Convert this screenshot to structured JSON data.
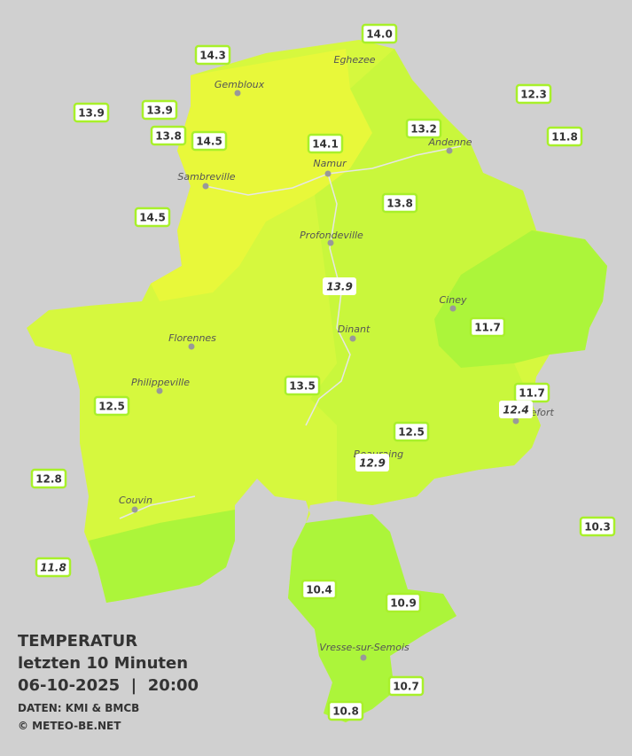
{
  "title": {
    "line1": "TEMPERATUR",
    "line2": "letzten 10 Minuten",
    "line3": "06-10-2025  |  20:00",
    "source": "DATEN: KMI & BMCB",
    "copyright": "© METEO-BE.NET"
  },
  "cities": [
    "Eghezee",
    "Gembloux",
    "Namur",
    "Andenne",
    "Sambreville",
    "Profondeville",
    "Ciney",
    "Florennes",
    "Dinant",
    "Philippeville",
    "Rochefort",
    "Beauraing",
    "Couvin",
    "Vresse-sur-Semois"
  ],
  "stations": [
    {
      "label": "14.3"
    },
    {
      "label": "14.0"
    },
    {
      "label": "13.9"
    },
    {
      "label": "13.9"
    },
    {
      "label": "13.8"
    },
    {
      "label": "14.5"
    },
    {
      "label": "14.1"
    },
    {
      "label": "13.2"
    },
    {
      "label": "12.3"
    },
    {
      "label": "11.8"
    },
    {
      "label": "14.5"
    },
    {
      "label": "13.8"
    },
    {
      "label": "13.9",
      "italic": true
    },
    {
      "label": "11.7"
    },
    {
      "label": "13.5"
    },
    {
      "label": "11.7"
    },
    {
      "label": "12.4",
      "italic": true
    },
    {
      "label": "12.5"
    },
    {
      "label": "12.5"
    },
    {
      "label": "12.9",
      "italic": true
    },
    {
      "label": "12.8"
    },
    {
      "label": "10.3"
    },
    {
      "label": "11.8",
      "italic": true
    },
    {
      "label": "10.4"
    },
    {
      "label": "10.9"
    },
    {
      "label": "10.7"
    },
    {
      "label": "10.8"
    }
  ]
}
